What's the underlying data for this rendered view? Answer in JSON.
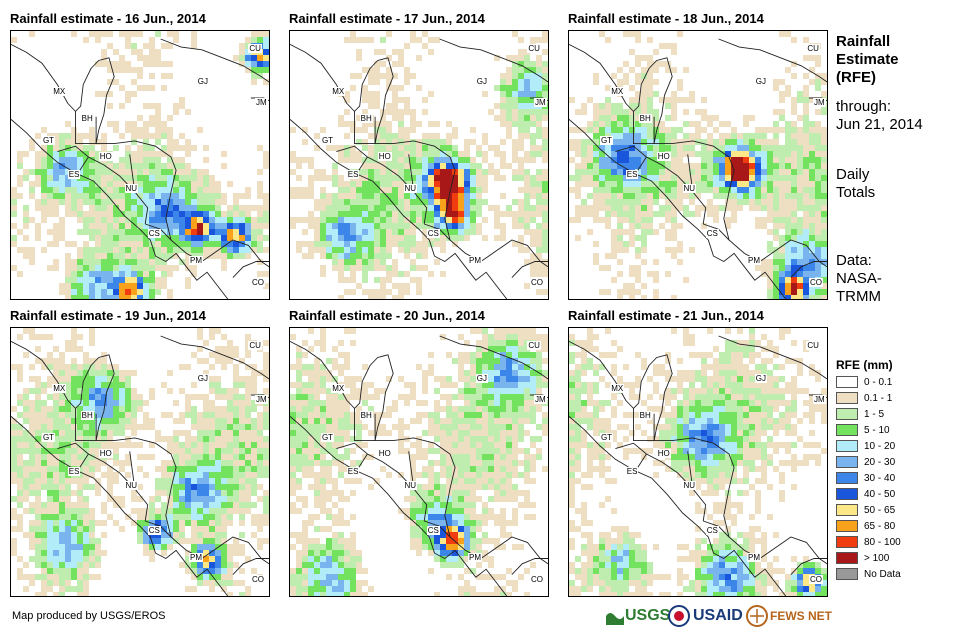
{
  "panels": [
    {
      "title": "Rainfall estimate - 16 Jun., 2014",
      "seed": 16,
      "hot": [
        [
          0.72,
          0.72
        ],
        [
          0.86,
          0.75
        ],
        [
          0.45,
          0.95
        ],
        [
          0.95,
          0.08
        ]
      ],
      "wet": [
        [
          0.6,
          0.65
        ],
        [
          0.2,
          0.5
        ],
        [
          0.3,
          0.95
        ]
      ]
    },
    {
      "title": "Rainfall estimate - 17 Jun., 2014",
      "seed": 17,
      "hot": [
        [
          0.6,
          0.55
        ],
        [
          0.62,
          0.67
        ]
      ],
      "wet": [
        [
          0.6,
          0.55
        ],
        [
          0.9,
          0.2
        ],
        [
          0.2,
          0.75
        ]
      ]
    },
    {
      "title": "Rainfall estimate - 18 Jun., 2014",
      "seed": 18,
      "hot": [
        [
          0.65,
          0.5
        ],
        [
          0.85,
          0.95
        ]
      ],
      "wet": [
        [
          0.65,
          0.5
        ],
        [
          0.2,
          0.45
        ],
        [
          0.9,
          0.85
        ]
      ]
    },
    {
      "title": "Rainfall estimate - 19 Jun., 2014",
      "seed": 19,
      "hot": [
        [
          0.55,
          0.75
        ],
        [
          0.75,
          0.85
        ]
      ],
      "wet": [
        [
          0.7,
          0.6
        ],
        [
          0.35,
          0.25
        ],
        [
          0.2,
          0.8
        ]
      ]
    },
    {
      "title": "Rainfall estimate - 20 Jun., 2014",
      "seed": 20,
      "hot": [
        [
          0.62,
          0.78
        ]
      ],
      "wet": [
        [
          0.55,
          0.7
        ],
        [
          0.85,
          0.15
        ],
        [
          0.15,
          0.9
        ]
      ]
    },
    {
      "title": "Rainfall estimate - 21 Jun., 2014",
      "seed": 21,
      "hot": [
        [
          0.92,
          0.93
        ]
      ],
      "wet": [
        [
          0.2,
          0.85
        ],
        [
          0.6,
          0.9
        ],
        [
          0.5,
          0.4
        ]
      ]
    }
  ],
  "country_labels": [
    "MX",
    "BH",
    "GT",
    "HO",
    "ES",
    "NU",
    "CS",
    "PM",
    "CO",
    "CU",
    "GJ",
    "JM"
  ],
  "side": {
    "title_line1": "Rainfall",
    "title_line2": "Estimate",
    "title_line3": "(RFE)",
    "through_line1": "through:",
    "through_line2": "Jun 21, 2014",
    "daily_line1": "Daily",
    "daily_line2": "Totals",
    "data_line1": "Data:",
    "data_line2": "NASA-",
    "data_line3": "TRMM"
  },
  "legend": {
    "title": "RFE (mm)",
    "items": [
      {
        "label": "0 - 0.1",
        "color": "#ffffff"
      },
      {
        "label": "0.1 - 1",
        "color": "#eedfc3"
      },
      {
        "label": "1 - 5",
        "color": "#bfedaf"
      },
      {
        "label": "5 - 10",
        "color": "#72e25f"
      },
      {
        "label": "10 - 20",
        "color": "#b2ecf9"
      },
      {
        "label": "20 - 30",
        "color": "#7ab4ef"
      },
      {
        "label": "30 - 40",
        "color": "#3b86e8"
      },
      {
        "label": "40 - 50",
        "color": "#1a56dc"
      },
      {
        "label": "50 - 65",
        "color": "#fde887"
      },
      {
        "label": "65 - 80",
        "color": "#f8a21c"
      },
      {
        "label": "80 - 100",
        "color": "#f03c0e"
      },
      {
        "label": "> 100",
        "color": "#a81818"
      },
      {
        "label": "No Data",
        "color": "#999999"
      }
    ]
  },
  "footer": {
    "credit": "Map produced by USGS/EROS"
  },
  "logos": {
    "usgs": "USGS",
    "usaid": "USAID",
    "fewsnet": "FEWS NET"
  }
}
